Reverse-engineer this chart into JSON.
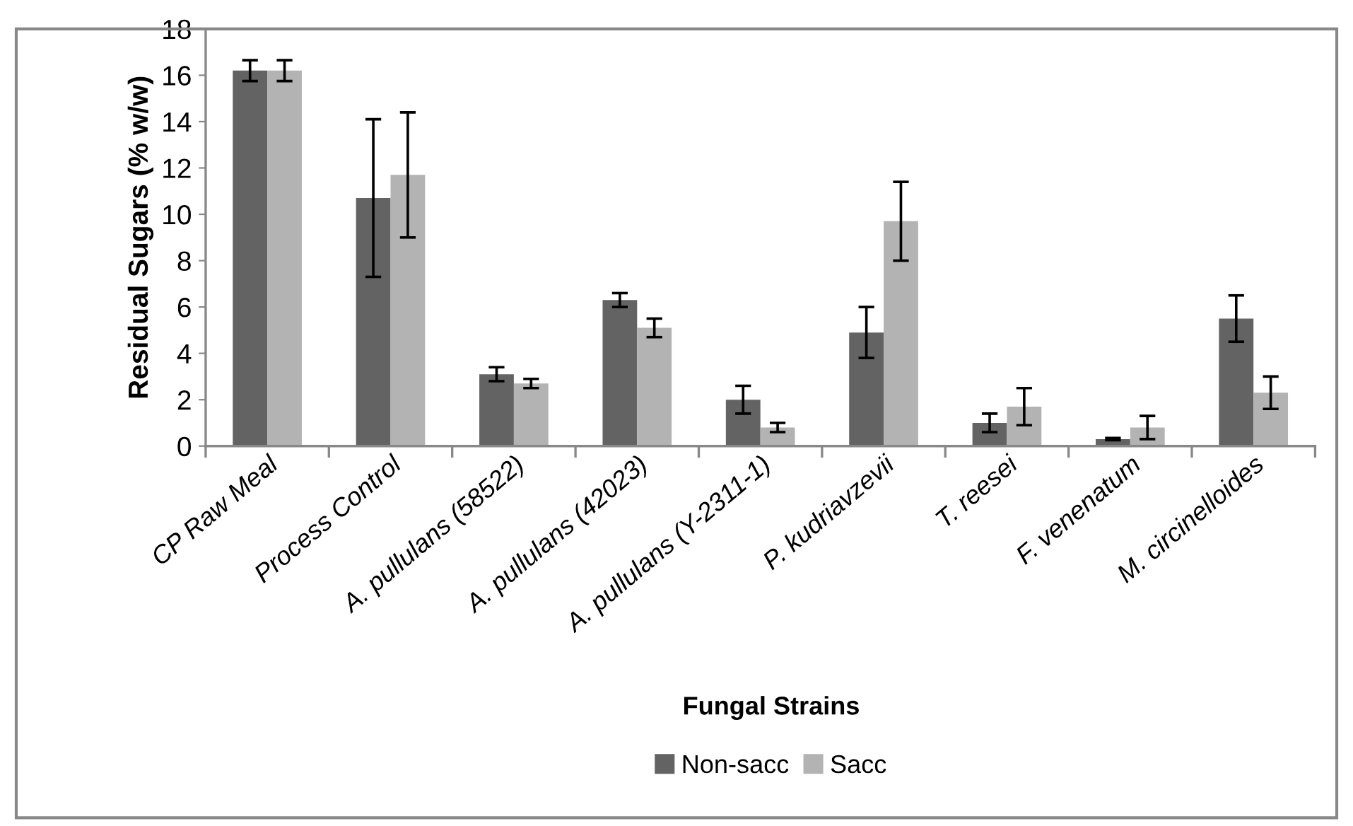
{
  "chart_data": {
    "type": "bar",
    "xlabel": "Fungal Strains",
    "ylabel": "Residual Sugars (% w/w)",
    "categories": [
      "CP Raw Meal",
      "Process Control",
      "A. pullulans (58522)",
      "A. pullulans (42023)",
      "A. pullulans (Y-2311-1)",
      "P. kudriavzevii",
      "T. reesei",
      "F. venenatum",
      "M. circinelloides"
    ],
    "series": [
      {
        "name": "Non-sacc",
        "color": "#636363",
        "values": [
          16.2,
          10.7,
          3.1,
          6.3,
          2.0,
          4.9,
          1.0,
          0.3,
          5.5
        ],
        "errors": [
          0.45,
          3.4,
          0.3,
          0.3,
          0.6,
          1.1,
          0.4,
          0.05,
          1.0
        ]
      },
      {
        "name": "Sacc",
        "color": "#b3b3b3",
        "values": [
          16.2,
          11.7,
          2.7,
          5.1,
          0.8,
          9.7,
          1.7,
          0.8,
          2.3
        ],
        "errors": [
          0.45,
          2.7,
          0.2,
          0.4,
          0.2,
          1.7,
          0.8,
          0.5,
          0.7
        ]
      }
    ],
    "ylim": [
      0,
      18
    ],
    "yticks": [
      0,
      2,
      4,
      6,
      8,
      10,
      12,
      14,
      16,
      18
    ],
    "grid": false,
    "legend": "bottom"
  }
}
